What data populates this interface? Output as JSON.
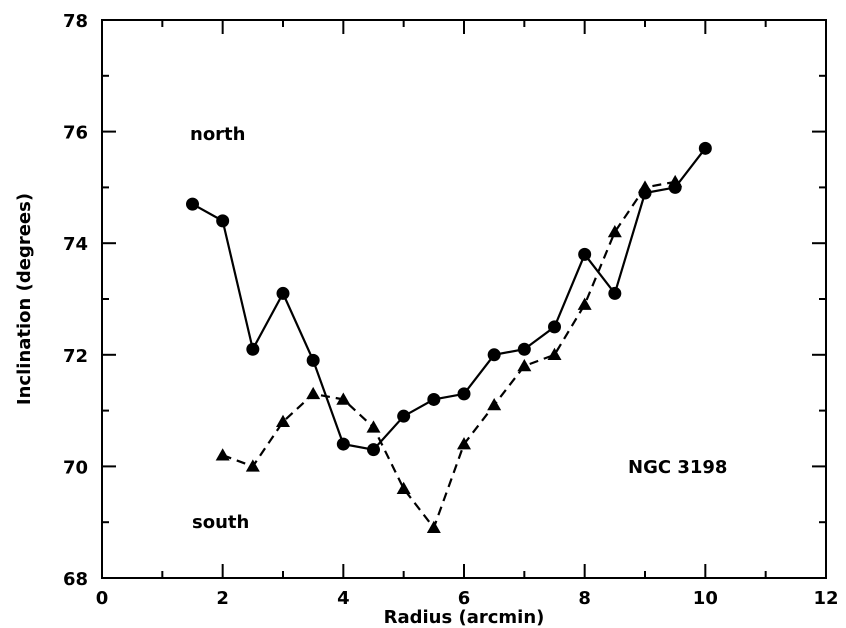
{
  "chart_data": {
    "type": "line",
    "title": "",
    "xlabel": "Radius  (arcmin)",
    "ylabel": "Inclination   (degrees)",
    "xlim": [
      0,
      12
    ],
    "ylim": [
      68,
      78
    ],
    "x_ticks": [
      0,
      2,
      4,
      6,
      8,
      10,
      12
    ],
    "y_ticks": [
      68,
      70,
      72,
      74,
      76,
      78
    ],
    "x_tick_labels": [
      "0",
      "2",
      "4",
      "6",
      "8",
      "10",
      "12"
    ],
    "y_tick_labels": [
      "68",
      "70",
      "72",
      "74",
      "76",
      "78"
    ],
    "grid": false,
    "legend": "none",
    "annotations": {
      "north": "north",
      "south": "south",
      "galaxy": "NGC 3198"
    },
    "series": [
      {
        "line_style": "solid",
        "marker": "circle",
        "color": "#000000",
        "x": [
          1.5,
          2.0,
          2.5,
          3.0,
          3.5,
          4.0,
          4.5,
          5.0,
          5.5,
          6.0,
          6.5,
          7.0,
          7.5,
          8.0,
          8.5,
          9.0,
          9.5,
          10.0
        ],
        "y": [
          74.7,
          74.4,
          72.1,
          73.1,
          71.9,
          70.4,
          70.3,
          70.9,
          71.2,
          71.3,
          72.0,
          72.1,
          72.5,
          73.8,
          73.1,
          74.9,
          75.0,
          75.7
        ]
      },
      {
        "line_style": "dashed",
        "marker": "triangle",
        "color": "#000000",
        "x": [
          2.0,
          2.5,
          3.0,
          3.5,
          4.0,
          4.5,
          5.0,
          5.5,
          6.0,
          6.5,
          7.0,
          7.5,
          8.0,
          8.5,
          9.0,
          9.5
        ],
        "y": [
          70.2,
          70.0,
          70.8,
          71.3,
          71.2,
          70.7,
          69.6,
          68.9,
          70.4,
          71.1,
          71.8,
          72.0,
          72.9,
          74.2,
          75.0,
          75.1
        ]
      }
    ]
  }
}
